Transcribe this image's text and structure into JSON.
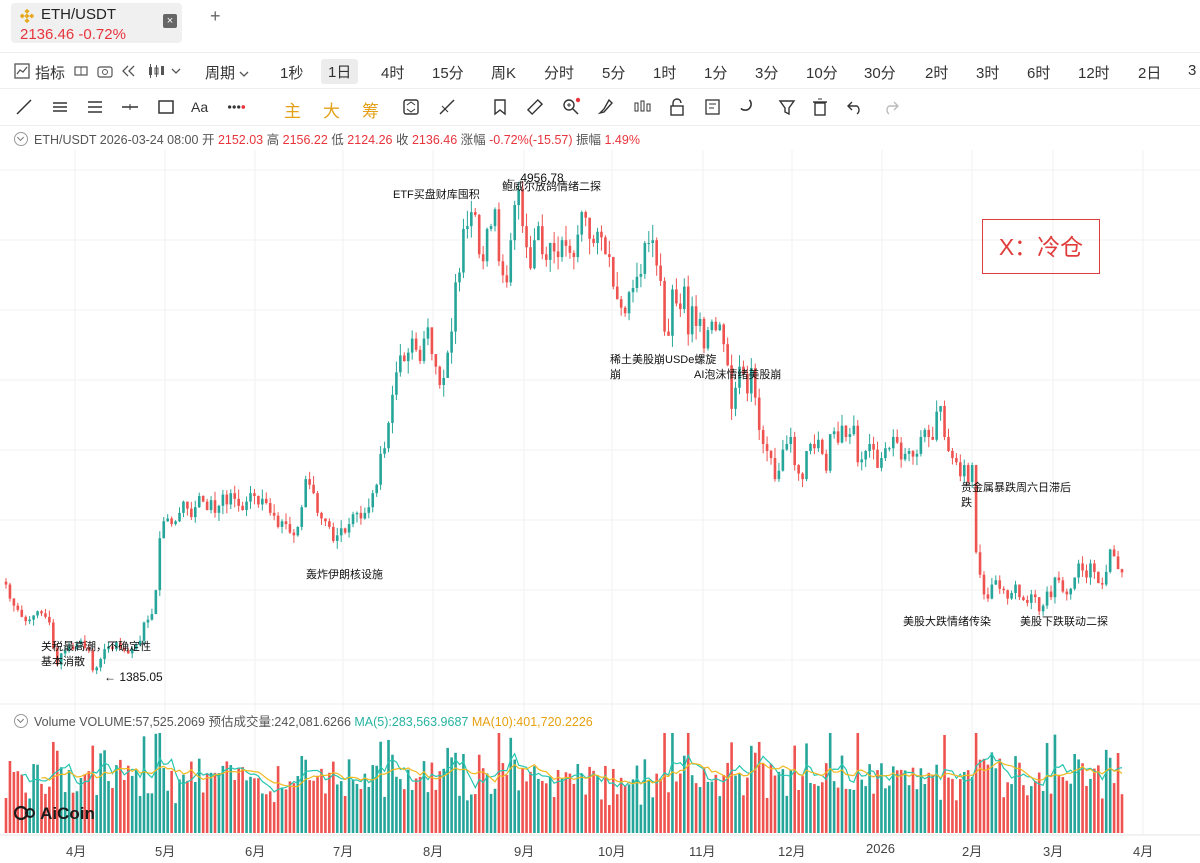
{
  "tab": {
    "symbol": "ETH/USDT",
    "price": "2136.46",
    "change": "-0.72%",
    "close": "×"
  },
  "add_tab": "+",
  "toolbar": {
    "indicators": "指标",
    "period_label": "周期",
    "periods": [
      "1秒",
      "1日",
      "4时",
      "15分",
      "周K",
      "分时",
      "5分",
      "1时",
      "1分",
      "3分",
      "10分",
      "30分",
      "2时",
      "3时",
      "6时",
      "12时",
      "2日",
      "3"
    ],
    "active_period": "1日",
    "drawing": {
      "main": "主",
      "big": "大",
      "chips": "筹"
    }
  },
  "info": {
    "symbol": "ETH/USDT",
    "datetime": "2026-03-24 08:00",
    "open_label": "开",
    "open": "2152.03",
    "high_label": "高",
    "high": "2156.22",
    "low_label": "低",
    "low": "2124.26",
    "close_label": "收",
    "close": "2136.46",
    "change_label": "涨幅",
    "change": "-0.72%(-15.57)",
    "amp_label": "振幅",
    "amp": "1.49%"
  },
  "volume_info": {
    "name": "Volume",
    "volume": "VOLUME:57,525.2069",
    "est": "预估成交量:242,081.6266",
    "ma5": "MA(5):283,563.9687",
    "ma10": "MA(10):401,720.2226"
  },
  "annotations": {
    "tariff": "关税最高潮，不确定性",
    "tariff2": "基本消散",
    "low_mark": "← 1385.05",
    "iran": "轰炸伊朗核设施",
    "etf": "ETF买盘财库囤积",
    "high_mark": "← 4956.78",
    "powell": "鲍威尔放鸽情绪二探",
    "rare": "稀土美股崩USDe螺旋",
    "rare2": "崩",
    "ai": "AI泡沫情绪美股崩",
    "metal": "贵金属暴跌周六日滞后",
    "metal2": "跌",
    "us_crash": "美股大跌情绪传染",
    "us_fall": "美股下跌联动二探"
  },
  "x_box": "X：冷仓",
  "brand": "AiCoin",
  "months": [
    "4月",
    "5月",
    "6月",
    "7月",
    "8月",
    "9月",
    "10月",
    "11月",
    "12月",
    "2026",
    "2月",
    "3月",
    "4月"
  ],
  "colors": {
    "up": "#26a69a",
    "down": "#ef5350",
    "ma5": "#26c6b0",
    "ma10": "#f2b81f"
  },
  "chart_data": {
    "type": "candlestick",
    "symbol": "ETH/USDT",
    "interval": "1日",
    "x_range": [
      "2025-03",
      "2026-03-24"
    ],
    "y_range": [
      1385.05,
      4956.78
    ],
    "close": [
      2050,
      1950,
      1900,
      1870,
      1820,
      1790,
      1800,
      1830,
      1860,
      1845,
      1820,
      1780,
      1600,
      1480,
      1560,
      1580,
      1610,
      1590,
      1630,
      1650,
      1600,
      1580,
      1440,
      1460,
      1520,
      1590,
      1610,
      1590,
      1640,
      1600,
      1580,
      1560,
      1590,
      1620,
      1650,
      1780,
      1800,
      1840,
      2010,
      2380,
      2500,
      2520,
      2480,
      2500,
      2560,
      2640,
      2590,
      2530,
      2600,
      2680,
      2640,
      2580,
      2650,
      2560,
      2610,
      2690,
      2620,
      2700,
      2660,
      2610,
      2580,
      2640,
      2700,
      2680,
      2620,
      2660,
      2630,
      2560,
      2540,
      2460,
      2500,
      2480,
      2420,
      2400,
      2460,
      2600,
      2800,
      2760,
      2700,
      2560,
      2520,
      2500,
      2460,
      2360,
      2400,
      2450,
      2420,
      2480,
      2550,
      2560,
      2520,
      2560,
      2600,
      2700,
      2760,
      2980,
      3020,
      3200,
      3400,
      3560,
      3680,
      3640,
      3700,
      3800,
      3720,
      3640,
      3800,
      3880,
      3690,
      3600,
      3470,
      3520,
      3700,
      3850,
      4200,
      4270,
      4580,
      4600,
      4700,
      4680,
      4400,
      4350,
      4580,
      4600,
      4720,
      4350,
      4250,
      4200,
      4500,
      4750,
      4860,
      4600,
      4450,
      4300,
      4500,
      4600,
      4400,
      4360,
      4480,
      4420,
      4380,
      4500,
      4460,
      4410,
      4380,
      4540,
      4700,
      4660,
      4510,
      4480,
      4560,
      4520,
      4400,
      4380,
      4170,
      4080,
      4020,
      3980,
      4130,
      4160,
      4240,
      4260,
      4480,
      4480,
      4500,
      4320,
      4210,
      3850,
      3820,
      4150,
      4050,
      4010,
      4170,
      3830,
      4030,
      3890,
      3940,
      3730,
      3860,
      3920,
      3860,
      3900,
      3760,
      3610,
      3300,
      3450,
      3600,
      3550,
      3410,
      3590,
      3380,
      3150,
      3050,
      3000,
      2950,
      2800,
      2860,
      3010,
      3050,
      3100,
      2900,
      2840,
      2800,
      3000,
      3050,
      3020,
      3080,
      2980,
      2860,
      3120,
      3140,
      3060,
      3180,
      3100,
      3120,
      3180,
      2920,
      2940,
      3000,
      3050,
      3010,
      2880,
      2950,
      3020,
      3020,
      3100,
      3060,
      2940,
      2980,
      3000,
      2960,
      2980,
      3100,
      3150,
      3100,
      3080,
      3280,
      3320,
      3100,
      3000,
      2950,
      2920,
      2820,
      2900,
      2780,
      2900,
      2280,
      2120,
      1980,
      1950,
      2050,
      2080,
      2020,
      2010,
      1950,
      1990,
      2050,
      1960,
      1940,
      1920,
      1980,
      1960,
      1860,
      1900,
      2000,
      1960,
      2100,
      2080,
      2000,
      1980,
      2020,
      2100,
      2200,
      2150,
      2100,
      2200,
      2140,
      2060,
      2050,
      2140,
      2300,
      2250,
      2160,
      2136.46
    ],
    "high": 4956.78,
    "low": 1385.05,
    "annotations_count": 10
  }
}
